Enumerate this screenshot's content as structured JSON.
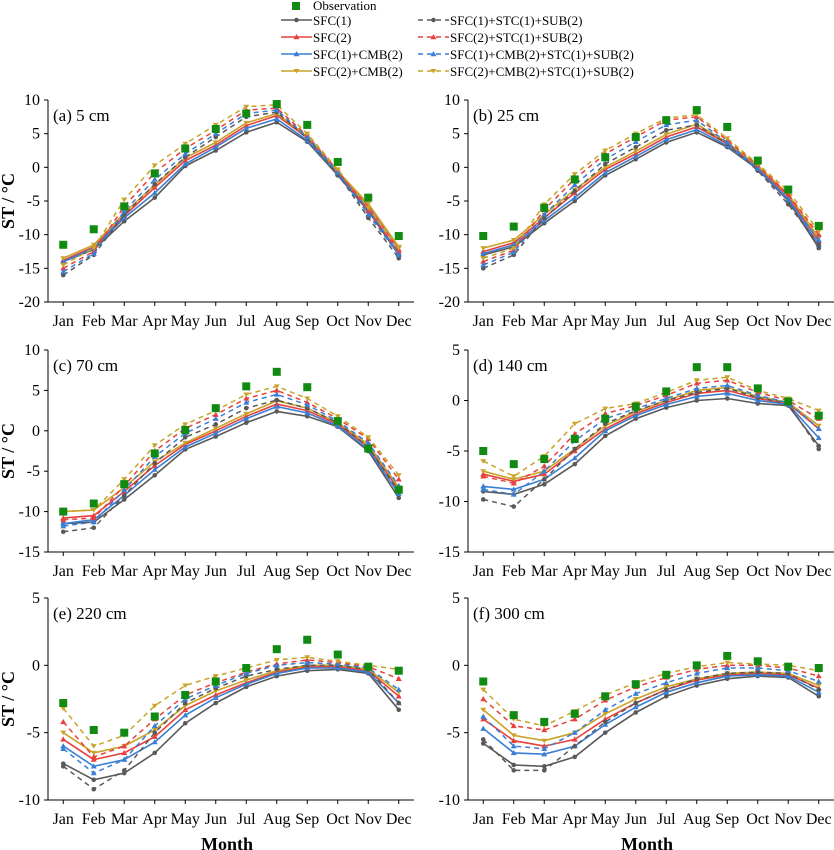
{
  "legend": {
    "observation": "Observation",
    "series": [
      {
        "key": "s1",
        "label": "SFC(1)",
        "color": "#595959",
        "dash": false
      },
      {
        "key": "s2",
        "label": "SFC(2)",
        "color": "#e8413c",
        "dash": false
      },
      {
        "key": "s3",
        "label": "SFC(1)+CMB(2)",
        "color": "#3a7fd5",
        "dash": false
      },
      {
        "key": "s4",
        "label": "SFC(2)+CMB(2)",
        "color": "#c9a227",
        "dash": false
      },
      {
        "key": "s5",
        "label": "SFC(1)+STC(1)+SUB(2)",
        "color": "#595959",
        "dash": true
      },
      {
        "key": "s6",
        "label": "SFC(2)+STC(1)+SUB(2)",
        "color": "#e8413c",
        "dash": true
      },
      {
        "key": "s7",
        "label": "SFC(1)+CMB(2)+STC(1)+SUB(2)",
        "color": "#3a7fd5",
        "dash": true
      },
      {
        "key": "s8",
        "label": "SFC(2)+CMB(2)+STC(1)+SUB(2)",
        "color": "#c9a227",
        "dash": true
      }
    ],
    "observation_color": "#108a10"
  },
  "chart_data": [
    {
      "type": "line",
      "panel": "(a) 5 cm",
      "ylabel": "ST / °C",
      "xlabel": "",
      "categories": [
        "Jan",
        "Feb",
        "Mar",
        "Apr",
        "May",
        "Jun",
        "Jul",
        "Aug",
        "Sep",
        "Oct",
        "Nov",
        "Dec"
      ],
      "ylim": [
        -20,
        10
      ],
      "yticks": [
        10,
        5,
        0,
        -5,
        -10,
        -15,
        -20
      ],
      "observation": [
        -11.5,
        -9.2,
        -5.8,
        -0.9,
        2.8,
        5.7,
        8.0,
        9.4,
        6.3,
        0.8,
        -4.5,
        -10.2
      ],
      "series": [
        {
          "key": "s1",
          "values": [
            -14.0,
            -12.2,
            -8.0,
            -4.5,
            0.2,
            2.5,
            5.2,
            6.7,
            3.8,
            -1.2,
            -6.5,
            -13.0
          ]
        },
        {
          "key": "s2",
          "values": [
            -13.8,
            -11.8,
            -7.2,
            -3.0,
            1.0,
            3.3,
            6.2,
            7.7,
            4.4,
            -0.8,
            -5.8,
            -12.2
          ]
        },
        {
          "key": "s3",
          "values": [
            -14.0,
            -12.0,
            -7.5,
            -3.8,
            0.5,
            3.0,
            5.8,
            7.2,
            4.0,
            -1.0,
            -6.2,
            -12.8
          ]
        },
        {
          "key": "s4",
          "values": [
            -13.5,
            -11.5,
            -6.8,
            -2.6,
            1.4,
            3.7,
            6.6,
            8.0,
            4.6,
            -0.6,
            -5.4,
            -11.8
          ]
        },
        {
          "key": "s5",
          "values": [
            -16.0,
            -13.0,
            -7.0,
            -2.5,
            1.5,
            4.5,
            7.5,
            8.2,
            4.3,
            -1.0,
            -7.5,
            -13.5
          ]
        },
        {
          "key": "s6",
          "values": [
            -15.0,
            -12.5,
            -5.8,
            -0.8,
            2.8,
            5.5,
            8.5,
            8.8,
            4.7,
            -0.5,
            -6.5,
            -12.5
          ]
        },
        {
          "key": "s7",
          "values": [
            -15.5,
            -12.8,
            -6.5,
            -1.8,
            2.0,
            5.0,
            8.0,
            8.5,
            4.5,
            -0.8,
            -7.0,
            -13.0
          ]
        },
        {
          "key": "s8",
          "values": [
            -14.5,
            -12.0,
            -4.8,
            0.3,
            3.5,
            6.3,
            9.0,
            9.3,
            5.0,
            -0.3,
            -6.0,
            -12.0
          ]
        }
      ]
    },
    {
      "type": "line",
      "panel": "(b) 25 cm",
      "ylabel": "",
      "xlabel": "",
      "categories": [
        "Jan",
        "Feb",
        "Mar",
        "Apr",
        "May",
        "Jun",
        "Jul",
        "Aug",
        "Sep",
        "Oct",
        "Nov",
        "Dec"
      ],
      "ylim": [
        -20,
        10
      ],
      "yticks": [
        10,
        5,
        0,
        -5,
        -10,
        -15,
        -20
      ],
      "observation": [
        -10.2,
        -8.8,
        -6.0,
        -1.8,
        1.5,
        4.5,
        7.0,
        8.5,
        6.0,
        1.0,
        -3.3,
        -8.7
      ],
      "series": [
        {
          "key": "s1",
          "values": [
            -13.0,
            -11.8,
            -8.3,
            -5.0,
            -1.2,
            1.2,
            3.7,
            5.2,
            3.0,
            -0.3,
            -5.0,
            -12.0
          ]
        },
        {
          "key": "s2",
          "values": [
            -12.5,
            -11.2,
            -7.5,
            -3.8,
            -0.3,
            2.0,
            4.5,
            6.0,
            3.5,
            0.0,
            -4.3,
            -11.0
          ]
        },
        {
          "key": "s3",
          "values": [
            -12.8,
            -11.5,
            -7.9,
            -4.5,
            -0.8,
            1.6,
            4.1,
            5.6,
            3.2,
            -0.2,
            -4.7,
            -11.5
          ]
        },
        {
          "key": "s4",
          "values": [
            -12.0,
            -10.8,
            -7.0,
            -3.3,
            0.0,
            2.4,
            4.9,
            6.4,
            3.7,
            0.2,
            -4.0,
            -10.5
          ]
        },
        {
          "key": "s5",
          "values": [
            -15.0,
            -13.0,
            -7.5,
            -3.5,
            0.5,
            3.0,
            5.5,
            6.3,
            3.5,
            -0.5,
            -5.5,
            -11.5
          ]
        },
        {
          "key": "s6",
          "values": [
            -14.0,
            -12.3,
            -6.3,
            -1.7,
            2.0,
            4.5,
            7.0,
            7.5,
            4.0,
            0.3,
            -4.0,
            -10.0
          ]
        },
        {
          "key": "s7",
          "values": [
            -14.5,
            -12.6,
            -7.0,
            -2.6,
            1.2,
            3.8,
            6.3,
            7.0,
            3.7,
            -0.2,
            -4.8,
            -10.8
          ]
        },
        {
          "key": "s8",
          "values": [
            -13.5,
            -12.0,
            -5.5,
            -1.0,
            2.5,
            5.0,
            7.3,
            7.8,
            4.3,
            0.5,
            -3.5,
            -9.5
          ]
        }
      ]
    },
    {
      "type": "line",
      "panel": "(c) 70 cm",
      "ylabel": "ST / °C",
      "xlabel": "",
      "categories": [
        "Jan",
        "Feb",
        "Mar",
        "Apr",
        "May",
        "Jun",
        "Jul",
        "Aug",
        "Sep",
        "Oct",
        "Nov",
        "Dec"
      ],
      "ylim": [
        -15,
        10
      ],
      "yticks": [
        10,
        5,
        0,
        -5,
        -10,
        -15
      ],
      "observation": [
        -10.0,
        -9.0,
        -6.6,
        -2.8,
        0.1,
        2.8,
        5.5,
        7.3,
        5.4,
        1.2,
        -2.2,
        -7.3
      ],
      "series": [
        {
          "key": "s1",
          "values": [
            -11.5,
            -11.3,
            -8.5,
            -5.5,
            -2.3,
            -0.7,
            1.0,
            2.4,
            1.8,
            0.5,
            -2.5,
            -8.3
          ]
        },
        {
          "key": "s2",
          "values": [
            -10.8,
            -10.5,
            -7.5,
            -4.3,
            -1.7,
            0.0,
            1.8,
            3.3,
            2.5,
            0.8,
            -2.0,
            -7.3
          ]
        },
        {
          "key": "s3",
          "values": [
            -11.5,
            -11.0,
            -8.0,
            -4.8,
            -2.0,
            -0.3,
            1.5,
            3.0,
            2.2,
            0.6,
            -2.3,
            -7.8
          ]
        },
        {
          "key": "s4",
          "values": [
            -10.0,
            -9.8,
            -7.0,
            -3.8,
            -1.5,
            0.3,
            2.1,
            3.7,
            2.8,
            1.0,
            -1.7,
            -7.0
          ]
        },
        {
          "key": "s5",
          "values": [
            -12.5,
            -12.0,
            -8.0,
            -4.0,
            -0.8,
            0.8,
            2.8,
            3.8,
            2.8,
            1.0,
            -2.0,
            -7.5
          ]
        },
        {
          "key": "s6",
          "values": [
            -11.0,
            -10.8,
            -6.8,
            -2.5,
            0.3,
            2.0,
            4.0,
            5.0,
            3.5,
            1.5,
            -1.0,
            -6.0
          ]
        },
        {
          "key": "s7",
          "values": [
            -11.8,
            -11.3,
            -7.3,
            -3.2,
            -0.3,
            1.5,
            3.5,
            4.5,
            3.2,
            1.2,
            -1.5,
            -6.8
          ]
        },
        {
          "key": "s8",
          "values": [
            -10.0,
            -9.8,
            -6.0,
            -1.8,
            0.8,
            2.5,
            4.5,
            5.5,
            4.0,
            1.8,
            -0.8,
            -5.5
          ]
        }
      ]
    },
    {
      "type": "line",
      "panel": "(d) 140 cm",
      "ylabel": "",
      "xlabel": "",
      "categories": [
        "Jan",
        "Feb",
        "Mar",
        "Apr",
        "May",
        "Jun",
        "Jul",
        "Aug",
        "Sep",
        "Oct",
        "Nov",
        "Dec"
      ],
      "ylim": [
        -15,
        5
      ],
      "yticks": [
        5,
        0,
        -5,
        -10,
        -15
      ],
      "observation": [
        -5.0,
        -6.3,
        -5.8,
        -3.8,
        -1.8,
        -0.6,
        0.9,
        3.3,
        3.3,
        1.2,
        -0.1,
        -1.5
      ],
      "series": [
        {
          "key": "s1",
          "values": [
            -9.0,
            -9.3,
            -8.3,
            -6.3,
            -3.5,
            -1.8,
            -0.7,
            0.0,
            0.2,
            -0.3,
            -0.5,
            -4.5
          ]
        },
        {
          "key": "s2",
          "values": [
            -7.3,
            -8.0,
            -7.3,
            -5.0,
            -2.8,
            -1.3,
            -0.2,
            0.7,
            1.0,
            0.2,
            -0.3,
            -2.8
          ]
        },
        {
          "key": "s3",
          "values": [
            -8.5,
            -8.8,
            -7.8,
            -5.7,
            -3.0,
            -1.5,
            -0.4,
            0.4,
            0.7,
            0.0,
            -0.4,
            -3.7
          ]
        },
        {
          "key": "s4",
          "values": [
            -7.0,
            -7.8,
            -7.0,
            -4.8,
            -2.5,
            -1.1,
            0.0,
            1.0,
            1.3,
            0.4,
            -0.2,
            -2.5
          ]
        },
        {
          "key": "s5",
          "values": [
            -9.8,
            -10.5,
            -7.8,
            -4.8,
            -2.3,
            -1.0,
            0.0,
            0.8,
            1.2,
            0.3,
            -0.3,
            -4.8
          ]
        },
        {
          "key": "s6",
          "values": [
            -7.5,
            -8.2,
            -6.5,
            -3.3,
            -1.3,
            -0.5,
            0.5,
            1.7,
            2.0,
            0.8,
            0.0,
            -1.8
          ]
        },
        {
          "key": "s7",
          "values": [
            -8.8,
            -9.3,
            -7.0,
            -4.0,
            -1.8,
            -0.8,
            0.2,
            1.2,
            1.5,
            0.5,
            -0.2,
            -2.8
          ]
        },
        {
          "key": "s8",
          "values": [
            -6.0,
            -7.5,
            -5.5,
            -2.3,
            -0.8,
            -0.3,
            0.8,
            2.0,
            2.3,
            1.0,
            0.2,
            -1.0
          ]
        }
      ]
    },
    {
      "type": "line",
      "panel": "(e) 220 cm",
      "ylabel": "ST / °C",
      "xlabel": "Month",
      "categories": [
        "Jan",
        "Feb",
        "Mar",
        "Apr",
        "May",
        "Jun",
        "Jul",
        "Aug",
        "Sep",
        "Oct",
        "Nov",
        "Dec"
      ],
      "ylim": [
        -10,
        5
      ],
      "yticks": [
        5,
        0,
        -5,
        -10
      ],
      "observation": [
        -2.8,
        -4.8,
        -5.0,
        -3.8,
        -2.2,
        -1.2,
        -0.2,
        1.2,
        1.9,
        0.8,
        -0.1,
        -0.4
      ],
      "series": [
        {
          "key": "s1",
          "values": [
            -7.3,
            -8.5,
            -8.0,
            -6.5,
            -4.3,
            -2.8,
            -1.6,
            -0.8,
            -0.4,
            -0.3,
            -0.6,
            -3.3
          ]
        },
        {
          "key": "s2",
          "values": [
            -5.5,
            -7.0,
            -6.5,
            -5.3,
            -3.3,
            -2.2,
            -1.3,
            -0.5,
            -0.1,
            -0.1,
            -0.4,
            -2.3
          ]
        },
        {
          "key": "s3",
          "values": [
            -6.0,
            -7.5,
            -7.0,
            -5.7,
            -3.7,
            -2.4,
            -1.4,
            -0.6,
            -0.2,
            -0.2,
            -0.5,
            -2.8
          ]
        },
        {
          "key": "s4",
          "values": [
            -5.0,
            -6.5,
            -6.0,
            -4.8,
            -3.0,
            -1.9,
            -1.1,
            -0.4,
            0.0,
            0.0,
            -0.3,
            -2.0
          ]
        },
        {
          "key": "s5",
          "values": [
            -7.5,
            -9.2,
            -7.8,
            -5.0,
            -2.8,
            -1.7,
            -0.8,
            -0.3,
            0.0,
            0.0,
            -0.3,
            -2.8
          ]
        },
        {
          "key": "s6",
          "values": [
            -4.2,
            -6.8,
            -6.0,
            -4.0,
            -2.2,
            -1.3,
            -0.5,
            0.1,
            0.4,
            0.2,
            -0.1,
            -1.0
          ]
        },
        {
          "key": "s7",
          "values": [
            -6.2,
            -8.0,
            -7.0,
            -4.5,
            -2.5,
            -1.5,
            -0.6,
            0.0,
            0.2,
            0.1,
            -0.2,
            -1.8
          ]
        },
        {
          "key": "s8",
          "values": [
            -3.2,
            -6.0,
            -5.2,
            -3.0,
            -1.5,
            -0.8,
            -0.2,
            0.4,
            0.6,
            0.3,
            0.0,
            -0.3
          ]
        }
      ]
    },
    {
      "type": "line",
      "panel": "(f) 300 cm",
      "ylabel": "",
      "xlabel": "Month",
      "categories": [
        "Jan",
        "Feb",
        "Mar",
        "Apr",
        "May",
        "Jun",
        "Jul",
        "Aug",
        "Sep",
        "Oct",
        "Nov",
        "Dec"
      ],
      "ylim": [
        -10,
        5
      ],
      "yticks": [
        5,
        0,
        -5,
        -10
      ],
      "observation": [
        -1.2,
        -3.7,
        -4.2,
        -3.6,
        -2.3,
        -1.4,
        -0.7,
        0.0,
        0.7,
        0.3,
        -0.1,
        -0.2
      ],
      "series": [
        {
          "key": "s1",
          "values": [
            -5.8,
            -7.4,
            -7.5,
            -6.8,
            -5.0,
            -3.5,
            -2.3,
            -1.5,
            -1.0,
            -0.8,
            -0.9,
            -2.3
          ]
        },
        {
          "key": "s2",
          "values": [
            -4.0,
            -5.6,
            -6.0,
            -5.5,
            -4.0,
            -2.8,
            -1.8,
            -1.1,
            -0.7,
            -0.6,
            -0.7,
            -1.7
          ]
        },
        {
          "key": "s3",
          "values": [
            -4.7,
            -6.5,
            -6.6,
            -6.0,
            -4.4,
            -3.1,
            -2.0,
            -1.3,
            -0.8,
            -0.7,
            -0.8,
            -2.0
          ]
        },
        {
          "key": "s4",
          "values": [
            -3.3,
            -5.2,
            -5.6,
            -5.0,
            -3.6,
            -2.5,
            -1.6,
            -1.0,
            -0.6,
            -0.5,
            -0.6,
            -1.5
          ]
        },
        {
          "key": "s5",
          "values": [
            -5.5,
            -7.8,
            -7.8,
            -6.0,
            -4.2,
            -2.8,
            -1.8,
            -1.0,
            -0.6,
            -0.5,
            -0.6,
            -1.8
          ]
        },
        {
          "key": "s6",
          "values": [
            -2.5,
            -4.5,
            -4.8,
            -4.0,
            -2.6,
            -1.6,
            -0.9,
            -0.3,
            0.0,
            0.0,
            -0.2,
            -0.8
          ]
        },
        {
          "key": "s7",
          "values": [
            -3.8,
            -6.0,
            -6.2,
            -5.0,
            -3.3,
            -2.1,
            -1.3,
            -0.6,
            -0.2,
            -0.2,
            -0.4,
            -1.2
          ]
        },
        {
          "key": "s8",
          "values": [
            -1.8,
            -4.0,
            -4.5,
            -3.4,
            -2.2,
            -1.3,
            -0.6,
            -0.1,
            0.2,
            0.1,
            0.0,
            -0.4
          ]
        }
      ]
    }
  ]
}
